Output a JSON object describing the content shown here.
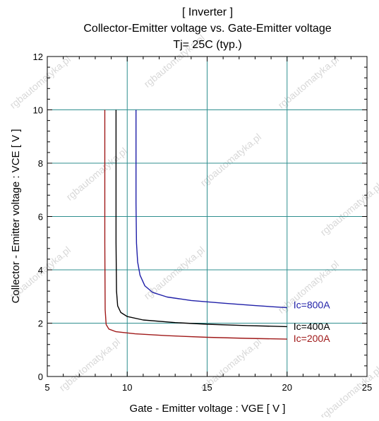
{
  "watermark": "rgbautomatyka.pl",
  "chart_data": {
    "type": "line",
    "title_lines": [
      "[ Inverter ]",
      "Collector-Emitter voltage  vs. Gate-Emitter voltage",
      "Tj= 25C  (typ.)"
    ],
    "xlabel": "Gate - Emitter voltage  :  VGE  [ V ]",
    "ylabel": "Collector - Emitter voltage  :  VCE  [ V ]",
    "xlim": [
      5,
      25
    ],
    "ylim": [
      0,
      12
    ],
    "x_ticks": [
      5,
      10,
      15,
      20,
      25
    ],
    "y_ticks": [
      0,
      2,
      4,
      6,
      8,
      10,
      12
    ],
    "grid": true,
    "series": [
      {
        "name": "Ic=800A",
        "color": "#1f1fa8",
        "points": [
          [
            10.55,
            10.0
          ],
          [
            10.55,
            6.5
          ],
          [
            10.58,
            5.0
          ],
          [
            10.65,
            4.3
          ],
          [
            10.8,
            3.8
          ],
          [
            11.1,
            3.4
          ],
          [
            11.6,
            3.15
          ],
          [
            12.5,
            2.98
          ],
          [
            14.0,
            2.85
          ],
          [
            16.0,
            2.75
          ],
          [
            18.0,
            2.66
          ],
          [
            20.0,
            2.58
          ]
        ]
      },
      {
        "name": "Ic=400A",
        "color": "#000000",
        "points": [
          [
            9.3,
            10.0
          ],
          [
            9.3,
            5.0
          ],
          [
            9.33,
            3.2
          ],
          [
            9.4,
            2.65
          ],
          [
            9.6,
            2.4
          ],
          [
            10.0,
            2.25
          ],
          [
            11.0,
            2.12
          ],
          [
            13.0,
            2.02
          ],
          [
            15.0,
            1.96
          ],
          [
            17.5,
            1.91
          ],
          [
            20.0,
            1.87
          ]
        ]
      },
      {
        "name": "Ic=200A",
        "color": "#a01a1a",
        "points": [
          [
            8.6,
            10.0
          ],
          [
            8.6,
            5.0
          ],
          [
            8.62,
            2.5
          ],
          [
            8.68,
            1.95
          ],
          [
            8.85,
            1.78
          ],
          [
            9.3,
            1.68
          ],
          [
            10.5,
            1.6
          ],
          [
            12.5,
            1.53
          ],
          [
            15.0,
            1.47
          ],
          [
            17.5,
            1.43
          ],
          [
            20.0,
            1.4
          ]
        ]
      }
    ],
    "annotations": [
      {
        "text": "Ic=800A",
        "x": 20.4,
        "y": 2.55,
        "color": "#1f1fa8"
      },
      {
        "text": "Ic=400A",
        "x": 20.4,
        "y": 1.75,
        "color": "#000000"
      },
      {
        "text": "Ic=200A",
        "x": 20.4,
        "y": 1.3,
        "color": "#a01a1a"
      }
    ]
  }
}
